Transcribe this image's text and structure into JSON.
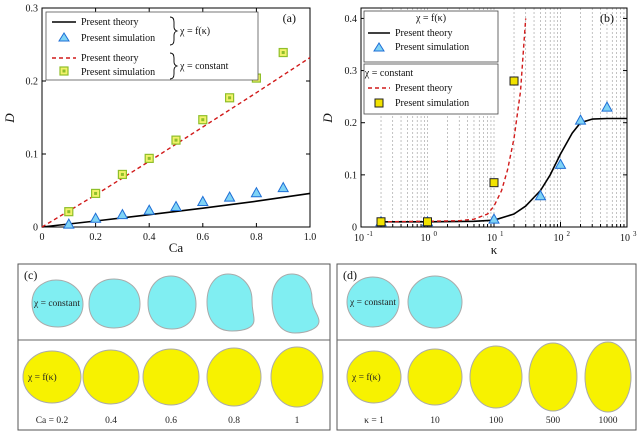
{
  "chart_data": [
    {
      "panel": "(a)",
      "type": "line",
      "xlabel": "Ca",
      "ylabel": "D",
      "xlim": [
        0,
        1.0
      ],
      "ylim": [
        0,
        0.3
      ],
      "xticks": [
        "0",
        "0.2",
        "0.4",
        "0.6",
        "0.8",
        "1.0"
      ],
      "yticks": [
        "0",
        "0.1",
        "0.2",
        "0.3"
      ],
      "grid": false,
      "legend_position": "top-left",
      "legend_groups": [
        {
          "brace_label": "χ = f(κ)",
          "entries": [
            "Present theory",
            "Present simulation"
          ]
        },
        {
          "brace_label": "χ = constant",
          "entries": [
            "Present theory",
            "Present simulation"
          ]
        }
      ],
      "series": [
        {
          "name": "Present theory",
          "group": "χ = f(κ)",
          "style": "line",
          "color": "#000000",
          "x": [
            0,
            0.2,
            0.4,
            0.6,
            0.8,
            1.0
          ],
          "y": [
            0,
            0.0082,
            0.0168,
            0.0258,
            0.0354,
            0.046
          ]
        },
        {
          "name": "Present simulation",
          "group": "χ = f(κ)",
          "style": "triangle",
          "color": "#1f6fd6",
          "x": [
            0.1,
            0.2,
            0.3,
            0.4,
            0.5,
            0.6,
            0.7,
            0.8,
            0.9
          ],
          "y": [
            0.004,
            0.012,
            0.017,
            0.023,
            0.028,
            0.035,
            0.041,
            0.047,
            0.054
          ]
        },
        {
          "name": "Present theory",
          "group": "χ = constant",
          "style": "dashed",
          "color": "#d11a1a",
          "x": [
            0,
            0.2,
            0.4,
            0.6,
            0.8,
            1.0
          ],
          "y": [
            0,
            0.044,
            0.09,
            0.137,
            0.184,
            0.232
          ]
        },
        {
          "name": "Present simulation",
          "group": "χ = constant",
          "style": "square",
          "color": "#8fbf2a",
          "x": [
            0.1,
            0.2,
            0.3,
            0.4,
            0.5,
            0.6,
            0.7,
            0.8,
            0.9
          ],
          "y": [
            0.021,
            0.046,
            0.072,
            0.094,
            0.119,
            0.147,
            0.177,
            0.204,
            0.239
          ]
        }
      ]
    },
    {
      "panel": "(b)",
      "type": "line",
      "xlabel": "κ",
      "ylabel": "D",
      "xscale": "log",
      "xlim": [
        0.1,
        1000
      ],
      "ylim": [
        0,
        0.42
      ],
      "xticks": [
        "10",
        "10",
        "10",
        "10",
        "10"
      ],
      "xtick_exponents": [
        "-1",
        "0",
        "1",
        "2",
        "3"
      ],
      "yticks": [
        "0",
        "0.1",
        "0.2",
        "0.3",
        "0.4"
      ],
      "grid": true,
      "legend_position": "top-left",
      "legend_groups": [
        {
          "title": "χ = f(κ)",
          "entries": [
            "Present theory",
            "Present simulation"
          ]
        },
        {
          "title": "χ = constant",
          "entries": [
            "Present theory",
            "Present simulation"
          ]
        }
      ],
      "series": [
        {
          "name": "Present theory",
          "group": "χ = f(κ)",
          "style": "line",
          "color": "#000000",
          "x": [
            0.2,
            1,
            5,
            10,
            20,
            30,
            50,
            70,
            100,
            150,
            200,
            300,
            500,
            1000
          ],
          "y": [
            0.01,
            0.01,
            0.011,
            0.013,
            0.025,
            0.04,
            0.07,
            0.1,
            0.14,
            0.18,
            0.2,
            0.207,
            0.208,
            0.208
          ]
        },
        {
          "name": "Present simulation",
          "group": "χ = f(κ)",
          "style": "triangle",
          "color": "#1f6fd6",
          "x": [
            0.2,
            1,
            10,
            50,
            100,
            200,
            500
          ],
          "y": [
            0.01,
            0.01,
            0.015,
            0.06,
            0.12,
            0.205,
            0.23
          ]
        },
        {
          "name": "Present theory",
          "group": "χ = constant",
          "style": "dashed",
          "color": "#d11a1a",
          "x": [
            0.2,
            1,
            3,
            5,
            8,
            10,
            13,
            16,
            20,
            25,
            30
          ],
          "y": [
            0.01,
            0.011,
            0.012,
            0.015,
            0.025,
            0.04,
            0.07,
            0.11,
            0.17,
            0.26,
            0.4
          ]
        },
        {
          "name": "Present simulation",
          "group": "χ = constant",
          "style": "square",
          "color": "#f2e300",
          "x": [
            0.2,
            1,
            10,
            20
          ],
          "y": [
            0.01,
            0.01,
            0.085,
            0.28
          ]
        }
      ]
    }
  ],
  "panel_c": {
    "tag": "(c)",
    "rows": [
      {
        "label": "χ = constant",
        "color": "#80eef2"
      },
      {
        "label": "χ = f(κ)",
        "color": "#f7f200"
      }
    ],
    "bottom_labels": [
      "Ca = 0.2",
      "0.4",
      "0.6",
      "0.8",
      "1"
    ]
  },
  "panel_d": {
    "tag": "(d)",
    "rows": [
      {
        "label": "χ = constant",
        "color": "#80eef2"
      },
      {
        "label": "χ = f(κ)",
        "color": "#f7f200"
      }
    ],
    "bottom_labels": [
      "κ = 1",
      "10",
      "100",
      "500",
      "1000"
    ]
  }
}
